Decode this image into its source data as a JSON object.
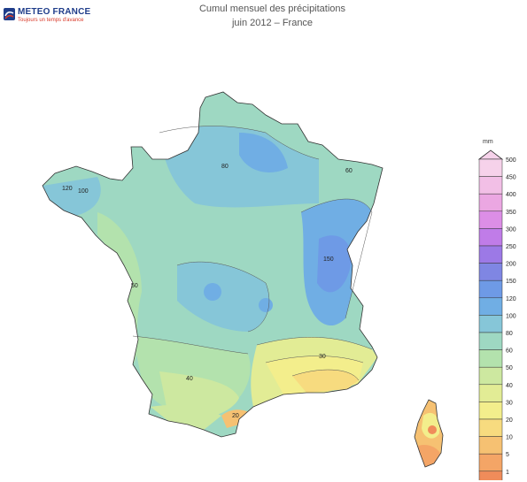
{
  "header": {
    "logo_name": "METEO FRANCE",
    "logo_tagline": "Toujours un temps d'avance",
    "title": "Cumul mensuel des précipitations",
    "subtitle": "juin 2012 – France"
  },
  "legend": {
    "unit": "mm",
    "levels": [
      {
        "label": "500",
        "color": "#f6d2ea"
      },
      {
        "label": "450",
        "color": "#f2bfe6"
      },
      {
        "label": "400",
        "color": "#eba7e2"
      },
      {
        "label": "350",
        "color": "#dc8ee6"
      },
      {
        "label": "300",
        "color": "#c07ce8"
      },
      {
        "label": "250",
        "color": "#9c79e6"
      },
      {
        "label": "200",
        "color": "#7f86e3"
      },
      {
        "label": "150",
        "color": "#6e9ae6"
      },
      {
        "label": "120",
        "color": "#70aee4"
      },
      {
        "label": "100",
        "color": "#86c6d8"
      },
      {
        "label": "80",
        "color": "#9ed8c2"
      },
      {
        "label": "60",
        "color": "#b3e2ad"
      },
      {
        "label": "50",
        "color": "#cde8a0"
      },
      {
        "label": "40",
        "color": "#e2ec95"
      },
      {
        "label": "30",
        "color": "#f3ee8c"
      },
      {
        "label": "20",
        "color": "#f7db7f"
      },
      {
        "label": "10",
        "color": "#f6c172"
      },
      {
        "label": "5",
        "color": "#f4a566"
      },
      {
        "label": "1",
        "color": "#f08c5a"
      }
    ]
  },
  "map": {
    "contour_labels": [
      "120",
      "100",
      "80",
      "60",
      "50",
      "40",
      "30",
      "20",
      "150"
    ],
    "colors": {
      "outline": "#333333",
      "contour": "#555555"
    }
  }
}
